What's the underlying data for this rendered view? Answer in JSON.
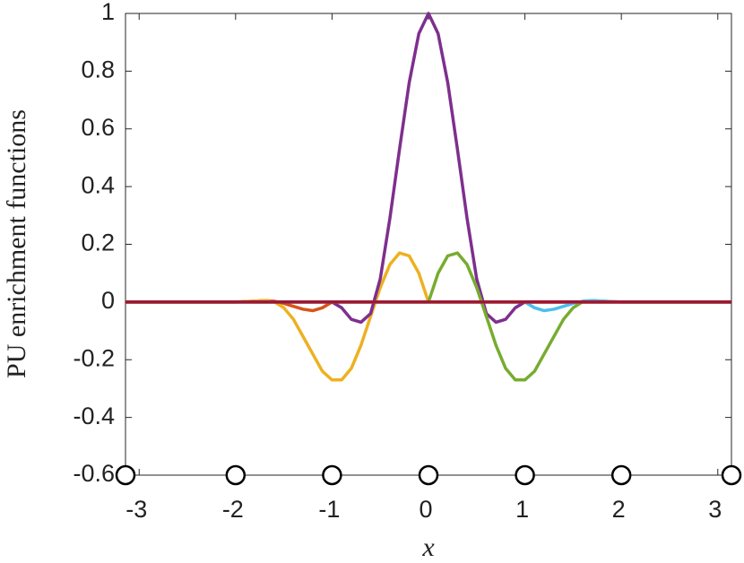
{
  "chart_data": {
    "type": "line",
    "xlabel": "x",
    "ylabel": "PU enrichment functions",
    "xlim": [
      -3.1416,
      3.1416
    ],
    "ylim": [
      -0.6,
      1
    ],
    "xticks": [
      -3,
      -2,
      -1,
      0,
      1,
      2,
      3
    ],
    "yticks": [
      -0.6,
      -0.4,
      -0.2,
      0,
      0.2,
      0.4,
      0.6,
      0.8,
      1
    ],
    "x": [
      -3.1416,
      -2,
      -1.8,
      -1.7,
      -1.6,
      -1.5,
      -1.4,
      -1.3,
      -1.2,
      -1.1,
      -1.0,
      -0.9,
      -0.8,
      -0.7,
      -0.6,
      -0.5,
      -0.4,
      -0.3,
      -0.2,
      -0.1,
      0,
      0.1,
      0.2,
      0.3,
      0.4,
      0.5,
      0.6,
      0.7,
      0.8,
      0.9,
      1.0,
      1.1,
      1.2,
      1.3,
      1.4,
      1.5,
      1.6,
      1.7,
      1.8,
      2,
      3.1416
    ],
    "series": [
      {
        "color": "#D95319",
        "values": [
          0,
          0,
          0.003,
          0.005,
          0.003,
          -0.005,
          -0.015,
          -0.025,
          -0.03,
          -0.02,
          0,
          0,
          0,
          0,
          0,
          0,
          0,
          0,
          0,
          0,
          0,
          0,
          0,
          0,
          0,
          0,
          0,
          0,
          0,
          0,
          0,
          0,
          0,
          0,
          0,
          0,
          0,
          0,
          0,
          0,
          0
        ]
      },
      {
        "color": "#EDB120",
        "values": [
          0,
          0,
          0.003,
          0.005,
          0.001,
          -0.02,
          -0.06,
          -0.12,
          -0.18,
          -0.24,
          -0.27,
          -0.27,
          -0.23,
          -0.15,
          -0.05,
          0.05,
          0.13,
          0.17,
          0.16,
          0.1,
          0,
          0,
          0,
          0,
          0,
          0,
          0,
          0,
          0,
          0,
          0,
          0,
          0,
          0,
          0,
          0,
          0,
          0,
          0,
          0,
          0
        ]
      },
      {
        "color": "#7E2F8E",
        "values": [
          0,
          0,
          0,
          0,
          0,
          0,
          0,
          0,
          0,
          0,
          0,
          -0.02,
          -0.06,
          -0.07,
          -0.04,
          0.08,
          0.29,
          0.53,
          0.76,
          0.93,
          1,
          0.93,
          0.76,
          0.53,
          0.29,
          0.08,
          -0.04,
          -0.07,
          -0.06,
          -0.02,
          0,
          0,
          0,
          0,
          0,
          0,
          0,
          0,
          0,
          0,
          0
        ]
      },
      {
        "color": "#77AC30",
        "values": [
          0,
          0,
          0,
          0,
          0,
          0,
          0,
          0,
          0,
          0,
          0,
          0,
          0,
          0,
          0,
          0,
          0,
          0,
          0,
          0,
          0,
          0.1,
          0.16,
          0.17,
          0.13,
          0.05,
          -0.05,
          -0.15,
          -0.23,
          -0.27,
          -0.27,
          -0.24,
          -0.18,
          -0.12,
          -0.06,
          -0.02,
          0.001,
          0.005,
          0.003,
          0,
          0
        ]
      },
      {
        "color": "#4DBEEE",
        "values": [
          0,
          0,
          0,
          0,
          0,
          0,
          0,
          0,
          0,
          0,
          0,
          0,
          0,
          0,
          0,
          0,
          0,
          0,
          0,
          0,
          0,
          0,
          0,
          0,
          0,
          0,
          0,
          0,
          0,
          0,
          0,
          -0.02,
          -0.03,
          -0.025,
          -0.015,
          -0.005,
          0.003,
          0.005,
          0.003,
          0,
          0
        ]
      },
      {
        "color": "#A2142F",
        "values": [
          0,
          0,
          0,
          0,
          0,
          0,
          0,
          0,
          0,
          0,
          0,
          0,
          0,
          0,
          0,
          0,
          0,
          0,
          0,
          0,
          0,
          0,
          0,
          0,
          0,
          0,
          0,
          0,
          0,
          0,
          0,
          0,
          0,
          0,
          0,
          0,
          0,
          0,
          0,
          0,
          0
        ]
      },
      {
        "color": "#000000",
        "marker": "o",
        "x": [
          -3.1416,
          -2,
          -1,
          0,
          1,
          2,
          3.1416
        ],
        "values": [
          -0.6,
          -0.6,
          -0.6,
          -0.6,
          -0.6,
          -0.6,
          -0.6
        ]
      }
    ]
  }
}
